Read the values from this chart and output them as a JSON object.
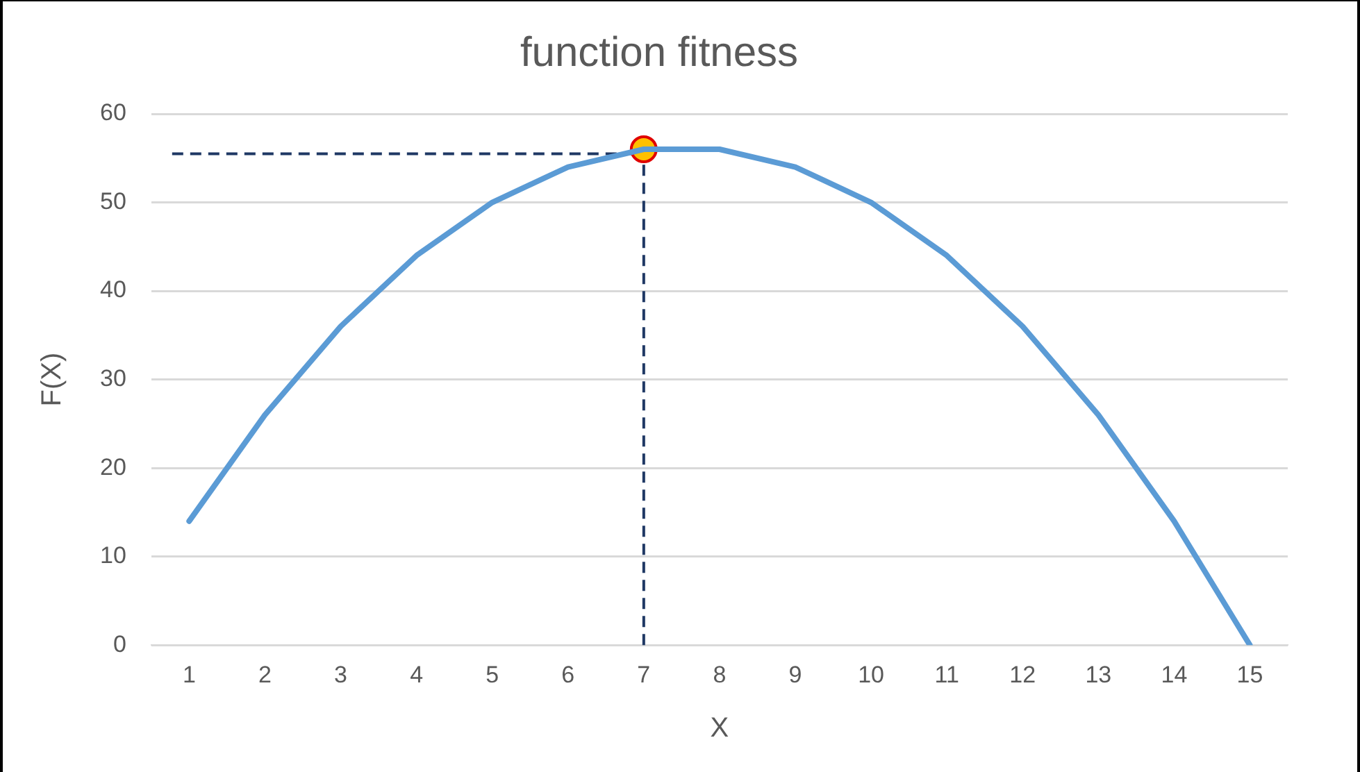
{
  "chart_data": {
    "type": "line",
    "title": "function fitness",
    "xlabel": "X",
    "ylabel": "F(X)",
    "x": [
      1,
      2,
      3,
      4,
      5,
      6,
      7,
      8,
      9,
      10,
      11,
      12,
      13,
      14,
      15
    ],
    "series": [
      {
        "color": "#5b9bd5",
        "marker": "none",
        "values": [
          14,
          26,
          36,
          44,
          50,
          54,
          56,
          56,
          54,
          50,
          44,
          36,
          26,
          14,
          0
        ]
      },
      {
        "type": "scatter",
        "color": "#ffc000",
        "marker": "circle",
        "x": [
          7
        ],
        "values": [
          56
        ]
      }
    ],
    "xlim": [
      0.5,
      15.5
    ],
    "xticks": [
      1,
      2,
      3,
      4,
      5,
      6,
      7,
      8,
      9,
      10,
      11,
      12,
      13,
      14,
      15
    ],
    "ylim": [
      0,
      60
    ],
    "yticks": [
      0,
      10,
      20,
      30,
      40,
      50,
      60
    ],
    "ref_lines": [
      {
        "axis": "y",
        "value": 55.5,
        "color": "#1f3864",
        "line_style": "dashed"
      },
      {
        "axis": "x",
        "value": 7,
        "color": "#1f3864",
        "line_style": "dashed"
      }
    ],
    "grid": "y",
    "legend": false,
    "line_style": "solid"
  }
}
